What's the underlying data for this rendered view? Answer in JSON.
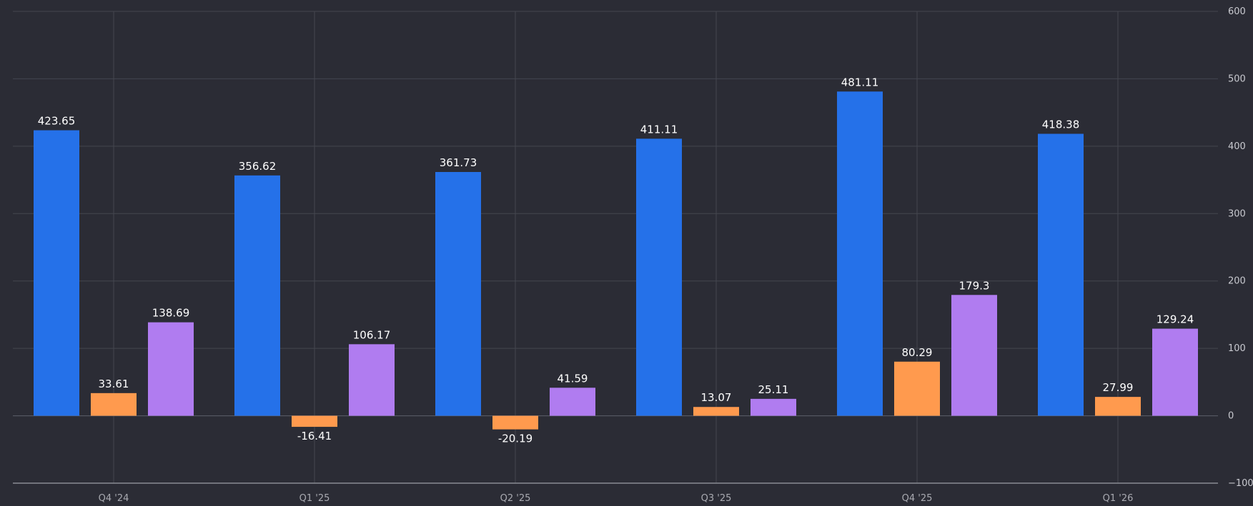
{
  "chart_data": {
    "type": "bar",
    "categories": [
      "Q4 '24",
      "Q1 '25",
      "Q2 '25",
      "Q3 '25",
      "Q4 '25",
      "Q1 '26"
    ],
    "series": [
      {
        "color": "#2571e9",
        "values": [
          423.65,
          356.62,
          361.73,
          411.11,
          481.11,
          418.38
        ]
      },
      {
        "color": "#ff9a4e",
        "values": [
          33.61,
          -16.41,
          -20.19,
          13.07,
          80.29,
          27.99
        ]
      },
      {
        "color": "#b07cf0",
        "values": [
          138.69,
          106.17,
          41.59,
          25.11,
          179.3,
          129.24
        ]
      }
    ],
    "y_ticks": [
      "600",
      "500",
      "400",
      "300",
      "200",
      "100",
      "0",
      "−100"
    ],
    "ylim": [
      -100,
      600
    ],
    "y_axis_side": "right",
    "grid": true,
    "legend": "none"
  }
}
